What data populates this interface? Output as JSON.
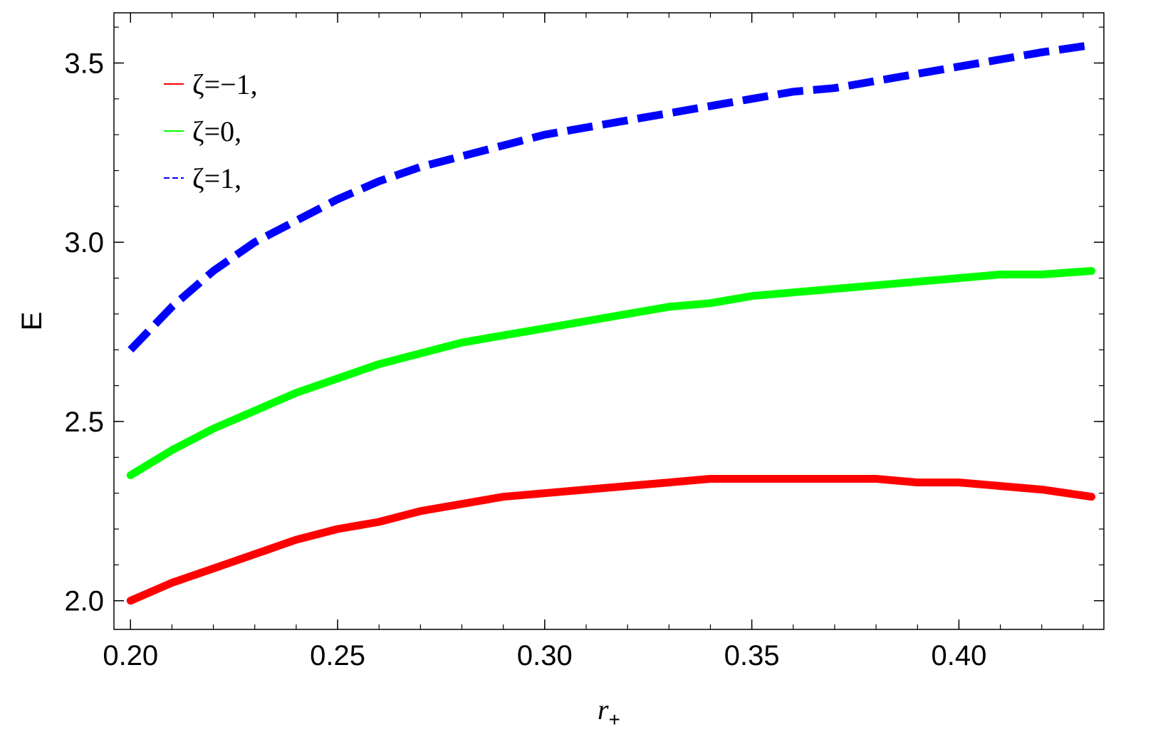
{
  "chart_data": {
    "type": "line",
    "title": "",
    "xlabel": "r",
    "xlabel_subscript": "+",
    "ylabel": "E",
    "xlim": [
      0.196,
      0.435
    ],
    "ylim": [
      1.92,
      3.64
    ],
    "x_ticks": [
      {
        "value": 0.2,
        "label": "0.20"
      },
      {
        "value": 0.25,
        "label": "0.25"
      },
      {
        "value": 0.3,
        "label": "0.30"
      },
      {
        "value": 0.35,
        "label": "0.35"
      },
      {
        "value": 0.4,
        "label": "0.40"
      }
    ],
    "y_ticks": [
      {
        "value": 2.0,
        "label": "2.0"
      },
      {
        "value": 2.5,
        "label": "2.5"
      },
      {
        "value": 3.0,
        "label": "3.0"
      },
      {
        "value": 3.5,
        "label": "3.5"
      }
    ],
    "x_minor_step": 0.01,
    "y_minor_step": 0.1,
    "grid": false,
    "legend_position": "top-left",
    "x": [
      0.2,
      0.21,
      0.22,
      0.23,
      0.24,
      0.25,
      0.26,
      0.27,
      0.28,
      0.29,
      0.3,
      0.31,
      0.32,
      0.33,
      0.34,
      0.35,
      0.36,
      0.37,
      0.38,
      0.39,
      0.4,
      0.41,
      0.42,
      0.432
    ],
    "series": [
      {
        "name": "ζ=−1,",
        "color": "#ff0000",
        "dashed": false,
        "values": [
          2.0,
          2.05,
          2.09,
          2.13,
          2.17,
          2.2,
          2.22,
          2.25,
          2.27,
          2.29,
          2.3,
          2.31,
          2.32,
          2.33,
          2.34,
          2.34,
          2.34,
          2.34,
          2.34,
          2.33,
          2.33,
          2.32,
          2.31,
          2.29
        ]
      },
      {
        "name": "ζ=0,",
        "color": "#00ff00",
        "dashed": false,
        "values": [
          2.35,
          2.42,
          2.48,
          2.53,
          2.58,
          2.62,
          2.66,
          2.69,
          2.72,
          2.74,
          2.76,
          2.78,
          2.8,
          2.82,
          2.83,
          2.85,
          2.86,
          2.87,
          2.88,
          2.89,
          2.9,
          2.91,
          2.91,
          2.92
        ]
      },
      {
        "name": "ζ=1,",
        "color": "#0000ff",
        "dashed": true,
        "values": [
          2.7,
          2.82,
          2.92,
          3.0,
          3.06,
          3.12,
          3.17,
          3.21,
          3.24,
          3.27,
          3.3,
          3.32,
          3.34,
          3.36,
          3.38,
          3.4,
          3.42,
          3.43,
          3.45,
          3.47,
          3.49,
          3.51,
          3.53,
          3.55
        ]
      }
    ]
  }
}
